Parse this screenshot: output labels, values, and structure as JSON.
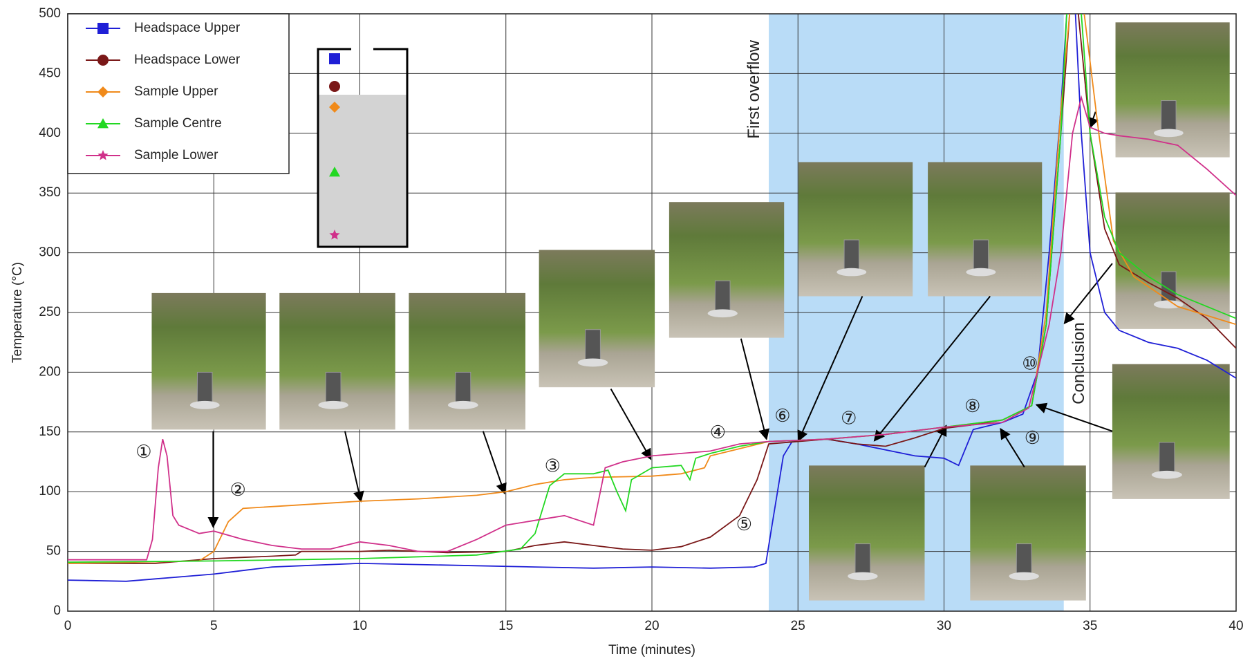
{
  "chart_data": {
    "type": "line",
    "x_label": "Time  (minutes)",
    "y_label": "Temperature (°C)",
    "xlim": [
      0,
      40
    ],
    "xticks": [
      0,
      5,
      10,
      15,
      20,
      25,
      30,
      35,
      40
    ],
    "ylim": [
      0,
      500
    ],
    "yticks": [
      0,
      50,
      100,
      150,
      200,
      250,
      300,
      350,
      400,
      450,
      500
    ],
    "grid": true,
    "legend": "upper left",
    "highlight_xrange": [
      24,
      34.1
    ],
    "highlight_color": "#b9dcf7",
    "annotations": [
      "①",
      "②",
      "③",
      "④",
      "⑤",
      "⑥",
      "⑦",
      "⑧",
      "⑨",
      "⑩",
      "First overflow",
      "Conclusion"
    ],
    "series": [
      {
        "name": "Headspace Upper",
        "color": "#1f1fd6",
        "marker": "square",
        "x": [
          0,
          2,
          3,
          4,
          5,
          6,
          7,
          8,
          10,
          12,
          14,
          16,
          18,
          20,
          22,
          23.5,
          23.9,
          24.1,
          24.5,
          24.8,
          26,
          27,
          28,
          29,
          30,
          30.5,
          30.8,
          31,
          32,
          32.7,
          33.2,
          33.6,
          34,
          34.2,
          null,
          34.5,
          34.7,
          35,
          35.5,
          36,
          37,
          38,
          39,
          40
        ],
        "values": [
          26,
          25,
          27,
          29,
          31,
          34,
          37,
          38,
          40,
          39,
          38,
          37,
          36,
          37,
          36,
          37,
          40,
          70,
          130,
          142,
          144,
          140,
          135,
          130,
          128,
          122,
          140,
          152,
          158,
          165,
          200,
          300,
          420,
          500,
          null,
          500,
          400,
          300,
          250,
          235,
          225,
          220,
          210,
          195
        ]
      },
      {
        "name": "Headspace Lower",
        "color": "#7a1818",
        "marker": "circle",
        "x": [
          0,
          3,
          4,
          5,
          6,
          7,
          7.8,
          8,
          10,
          11,
          13,
          15,
          16,
          17,
          18,
          19,
          20,
          21,
          22,
          23,
          23.6,
          24,
          25,
          26,
          27,
          28,
          29,
          30,
          31,
          32,
          33,
          33.5,
          34,
          34.3,
          null,
          34.6,
          35,
          35.5,
          36,
          37,
          38,
          39,
          40
        ],
        "values": [
          40,
          40,
          42,
          44,
          45,
          46,
          47,
          50,
          50,
          51,
          49,
          50,
          55,
          58,
          55,
          52,
          51,
          54,
          62,
          80,
          110,
          140,
          142,
          144,
          140,
          138,
          145,
          153,
          156,
          160,
          172,
          240,
          400,
          500,
          null,
          500,
          400,
          320,
          290,
          275,
          262,
          245,
          220
        ]
      },
      {
        "name": "Sample Upper",
        "color": "#f08a1a",
        "marker": "diamond",
        "x": [
          0,
          4.5,
          5,
          5.5,
          6,
          8,
          10,
          12,
          14,
          15,
          16,
          17,
          18,
          20,
          21,
          21.8,
          22,
          23,
          24,
          26,
          28,
          30,
          32,
          33,
          33.5,
          34,
          34.3,
          null,
          34.8,
          35.3,
          35.8,
          36.5,
          38,
          40
        ],
        "values": [
          40,
          42,
          50,
          75,
          86,
          89,
          92,
          94,
          97,
          100,
          106,
          110,
          112,
          113,
          115,
          120,
          130,
          136,
          142,
          144,
          148,
          154,
          160,
          172,
          250,
          420,
          500,
          null,
          500,
          400,
          310,
          280,
          255,
          240
        ]
      },
      {
        "name": "Sample Centre",
        "color": "#22d822",
        "marker": "triangle",
        "x": [
          0,
          5,
          10,
          14,
          15.5,
          16,
          16.5,
          17,
          18,
          18.5,
          18.8,
          19.1,
          19.3,
          20,
          21,
          21.3,
          21.5,
          22,
          23,
          24,
          26,
          28,
          30,
          32,
          33,
          33.5,
          34,
          34.2,
          null,
          34.7,
          35,
          35.5,
          36,
          37,
          38,
          40
        ],
        "values": [
          41,
          42,
          44,
          47,
          52,
          65,
          105,
          115,
          115,
          118,
          100,
          84,
          110,
          120,
          122,
          110,
          128,
          132,
          138,
          142,
          144,
          148,
          154,
          160,
          172,
          240,
          400,
          500,
          null,
          500,
          400,
          330,
          300,
          280,
          265,
          245
        ]
      },
      {
        "name": "Sample Lower",
        "color": "#d0308a",
        "marker": "star",
        "x": [
          0,
          2.7,
          2.9,
          3.1,
          3.25,
          3.4,
          3.6,
          3.8,
          4.5,
          5,
          6,
          7,
          8,
          9,
          10,
          11,
          12,
          13,
          14,
          15,
          16,
          17,
          18,
          18.4,
          19,
          20,
          21,
          22,
          23,
          24,
          26,
          28,
          30,
          32,
          32.9,
          33.1,
          33.3,
          33.6,
          34,
          34.4,
          34.7,
          35,
          35.5,
          36,
          37,
          38,
          39,
          40
        ],
        "values": [
          43,
          43,
          60,
          120,
          144,
          130,
          80,
          72,
          65,
          67,
          60,
          55,
          52,
          52,
          58,
          55,
          50,
          50,
          60,
          72,
          76,
          80,
          72,
          120,
          125,
          130,
          132,
          134,
          140,
          142,
          144,
          148,
          154,
          158,
          170,
          190,
          210,
          240,
          300,
          400,
          430,
          405,
          400,
          398,
          395,
          390,
          370,
          348
        ]
      }
    ]
  }
}
